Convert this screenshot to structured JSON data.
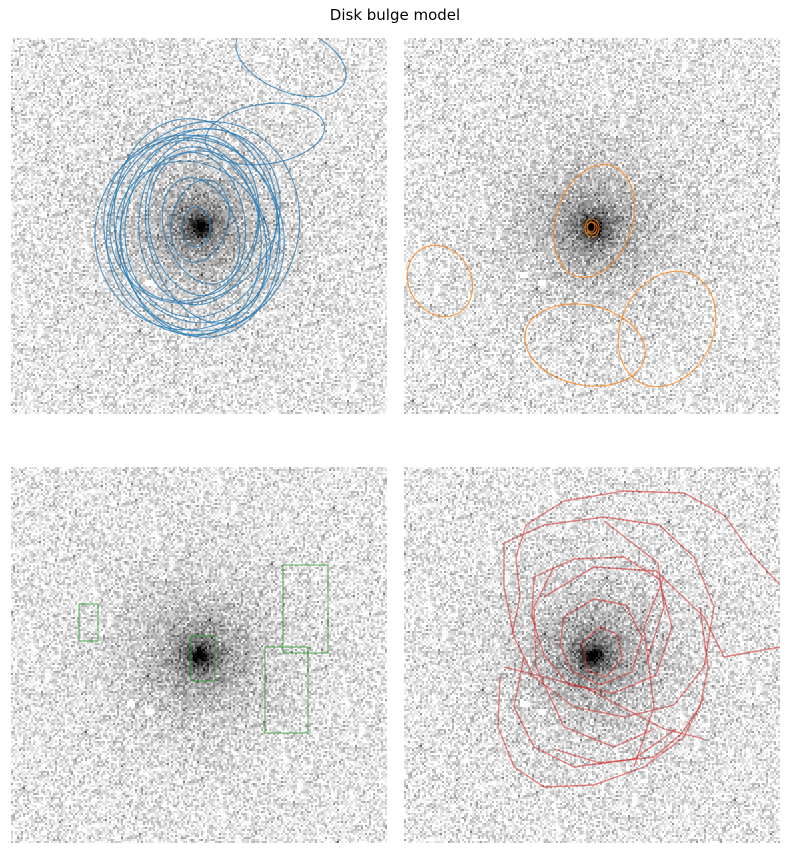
{
  "figure": {
    "title": "Disk bulge model"
  },
  "panels": [
    {
      "id": "top-left",
      "overlay": "ellipses",
      "color": "#1f77b4"
    },
    {
      "id": "top-right",
      "overlay": "ellipses",
      "color": "#ff7f0e"
    },
    {
      "id": "bottom-left",
      "overlay": "rectangles",
      "color": "#2ca02c"
    },
    {
      "id": "bottom-right",
      "overlay": "contours",
      "color": "#d62728"
    }
  ]
}
